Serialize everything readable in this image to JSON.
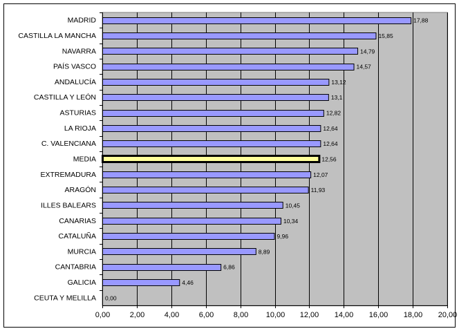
{
  "chart_data": {
    "type": "bar",
    "orientation": "horizontal",
    "categories": [
      "MADRID",
      "CASTILLA LA MANCHA",
      "NAVARRA",
      "PAÍS VASCO",
      "ANDALUCÍA",
      "CASTILLA Y LEÓN",
      "ASTURIAS",
      "LA RIOJA",
      "C. VALENCIANA",
      "MEDIA",
      "EXTREMADURA",
      "ARAGÓN",
      "ILLES BALEARS",
      "CANARIAS",
      "CATALUÑA",
      "MURCIA",
      "CANTABRIA",
      "GALICIA",
      "CEUTA Y MELILLA"
    ],
    "values": [
      17.88,
      15.85,
      14.79,
      14.57,
      13.12,
      13.1,
      12.82,
      12.64,
      12.64,
      12.56,
      12.07,
      11.93,
      10.45,
      10.34,
      9.96,
      8.89,
      6.86,
      4.46,
      0.0
    ],
    "value_labels": [
      "17,88",
      "15,85",
      "14,79",
      "14,57",
      "13,12",
      "13,1",
      "12,82",
      "12,64",
      "12,64",
      "12,56",
      "12,07",
      "11,93",
      "10,45",
      "10,34",
      "9,96",
      "8,89",
      "6,86",
      "4,46",
      "0,00"
    ],
    "highlight_category": "MEDIA",
    "xlim": [
      0,
      20
    ],
    "x_ticks": [
      "0,00",
      "2,00",
      "4,00",
      "6,00",
      "8,00",
      "10,00",
      "12,00",
      "14,00",
      "16,00",
      "18,00",
      "20,00"
    ],
    "grid": true,
    "title": "",
    "xlabel": "",
    "ylabel": "",
    "colors": {
      "bar_fill": "#9999ff",
      "highlight_fill": "#ffff99",
      "plot_background": "#c0c0c0",
      "gridline": "#000000"
    }
  }
}
